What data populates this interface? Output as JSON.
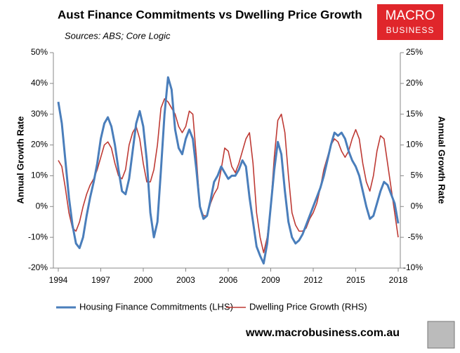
{
  "chart_data": {
    "type": "line",
    "title": "Aust Finance Commitments vs Dwelling Price Growth",
    "subtitle": "Sources: ABS; Core Logic",
    "y_label": "Annual Growth Rate",
    "y2_label": "Annual Growth Rate",
    "logo": [
      "MACRO",
      "BUSINESS"
    ],
    "footer": "www.macrobusiness.com.au",
    "xlim": [
      1994,
      2018
    ],
    "xticks": [
      1994,
      1997,
      2000,
      2003,
      2006,
      2009,
      2012,
      2015,
      2018
    ],
    "ylim": [
      -20,
      50
    ],
    "yticks": [
      {
        "value": -20,
        "label": "-20%"
      },
      {
        "value": -10,
        "label": "-10%"
      },
      {
        "value": 0,
        "label": "0%"
      },
      {
        "value": 10,
        "label": "10%"
      },
      {
        "value": 20,
        "label": "20%"
      },
      {
        "value": 30,
        "label": "30%"
      },
      {
        "value": 40,
        "label": "40%"
      },
      {
        "value": 50,
        "label": "50%"
      }
    ],
    "y2lim": [
      -10,
      25
    ],
    "y2ticks": [
      {
        "value": -10,
        "label": "-10%"
      },
      {
        "value": -5,
        "label": "-5%"
      },
      {
        "value": 0,
        "label": "0%"
      },
      {
        "value": 5,
        "label": "5%"
      },
      {
        "value": 10,
        "label": "10%"
      },
      {
        "value": 15,
        "label": "15%"
      },
      {
        "value": 20,
        "label": "20%"
      },
      {
        "value": 25,
        "label": "25%"
      }
    ],
    "grid": false,
    "legend": "bottom",
    "x": [
      1994,
      1994.25,
      1994.5,
      1994.75,
      1995,
      1995.25,
      1995.5,
      1995.75,
      1996,
      1996.25,
      1996.5,
      1996.75,
      1997,
      1997.25,
      1997.5,
      1997.75,
      1998,
      1998.25,
      1998.5,
      1998.75,
      1999,
      1999.25,
      1999.5,
      1999.75,
      2000,
      2000.25,
      2000.5,
      2000.75,
      2001,
      2001.25,
      2001.5,
      2001.75,
      2002,
      2002.25,
      2002.5,
      2002.75,
      2003,
      2003.25,
      2003.5,
      2003.75,
      2004,
      2004.25,
      2004.5,
      2004.75,
      2005,
      2005.25,
      2005.5,
      2005.75,
      2006,
      2006.25,
      2006.5,
      2006.75,
      2007,
      2007.25,
      2007.5,
      2007.75,
      2008,
      2008.25,
      2008.5,
      2008.75,
      2009,
      2009.25,
      2009.5,
      2009.75,
      2010,
      2010.25,
      2010.5,
      2010.75,
      2011,
      2011.25,
      2011.5,
      2011.75,
      2012,
      2012.25,
      2012.5,
      2012.75,
      2013,
      2013.25,
      2013.5,
      2013.75,
      2014,
      2014.25,
      2014.5,
      2014.75,
      2015,
      2015.25,
      2015.5,
      2015.75,
      2016,
      2016.25,
      2016.5,
      2016.75,
      2017,
      2017.25,
      2017.5,
      2017.75,
      2018
    ],
    "series": [
      {
        "name": "Housing Finance Commitments (LHS)",
        "color": "#4a7ebb",
        "axis": "y",
        "values": [
          34,
          27,
          15,
          3,
          -6,
          -12,
          -13.5,
          -10,
          -3,
          3,
          8,
          14,
          22,
          27,
          29,
          26,
          20,
          12,
          5,
          4,
          9,
          18,
          27,
          31,
          26,
          15,
          -2,
          -10,
          -5,
          12,
          30,
          42,
          38,
          25,
          19,
          17,
          22,
          25,
          22,
          12,
          0,
          -4,
          -3,
          2,
          8,
          10,
          13,
          11,
          9,
          10,
          10,
          12,
          15,
          13,
          3,
          -5,
          -13,
          -16,
          -18.5,
          -12,
          0,
          12,
          21,
          17,
          5,
          -5,
          -10,
          -12,
          -11,
          -9,
          -6,
          -3,
          0,
          3,
          6,
          10,
          15,
          20,
          24,
          23,
          24,
          22,
          18,
          15,
          13,
          10,
          5,
          0,
          -4,
          -3,
          1,
          5,
          8,
          7,
          4,
          1,
          -5.5
        ]
      },
      {
        "name": "Dwelling Price Growth (RHS)",
        "color": "#be3a34",
        "axis": "y2",
        "values": [
          7.5,
          6.5,
          3,
          -1,
          -3.5,
          -4,
          -2.5,
          0,
          2,
          3.5,
          4.5,
          6,
          8,
          10,
          10.5,
          9.5,
          7,
          5,
          4.5,
          6,
          10,
          12,
          13,
          11,
          7,
          4,
          4,
          6,
          10,
          16,
          17.5,
          17,
          16,
          15,
          13,
          12,
          13,
          15.5,
          15,
          8,
          0,
          -1.5,
          -1.5,
          0.5,
          2,
          3,
          6,
          9.5,
          9,
          6.5,
          5.5,
          7,
          9,
          11,
          12,
          7,
          -1,
          -5,
          -7.5,
          -5,
          0,
          8,
          14,
          15,
          12,
          5,
          -1,
          -3,
          -4,
          -4,
          -3.5,
          -2,
          -1,
          0.5,
          3,
          6,
          8,
          10,
          11,
          10.5,
          9,
          8,
          9,
          11,
          12.5,
          11,
          7,
          4,
          2.5,
          5,
          9,
          11.5,
          11,
          7,
          3,
          -1,
          -5
        ]
      }
    ]
  }
}
